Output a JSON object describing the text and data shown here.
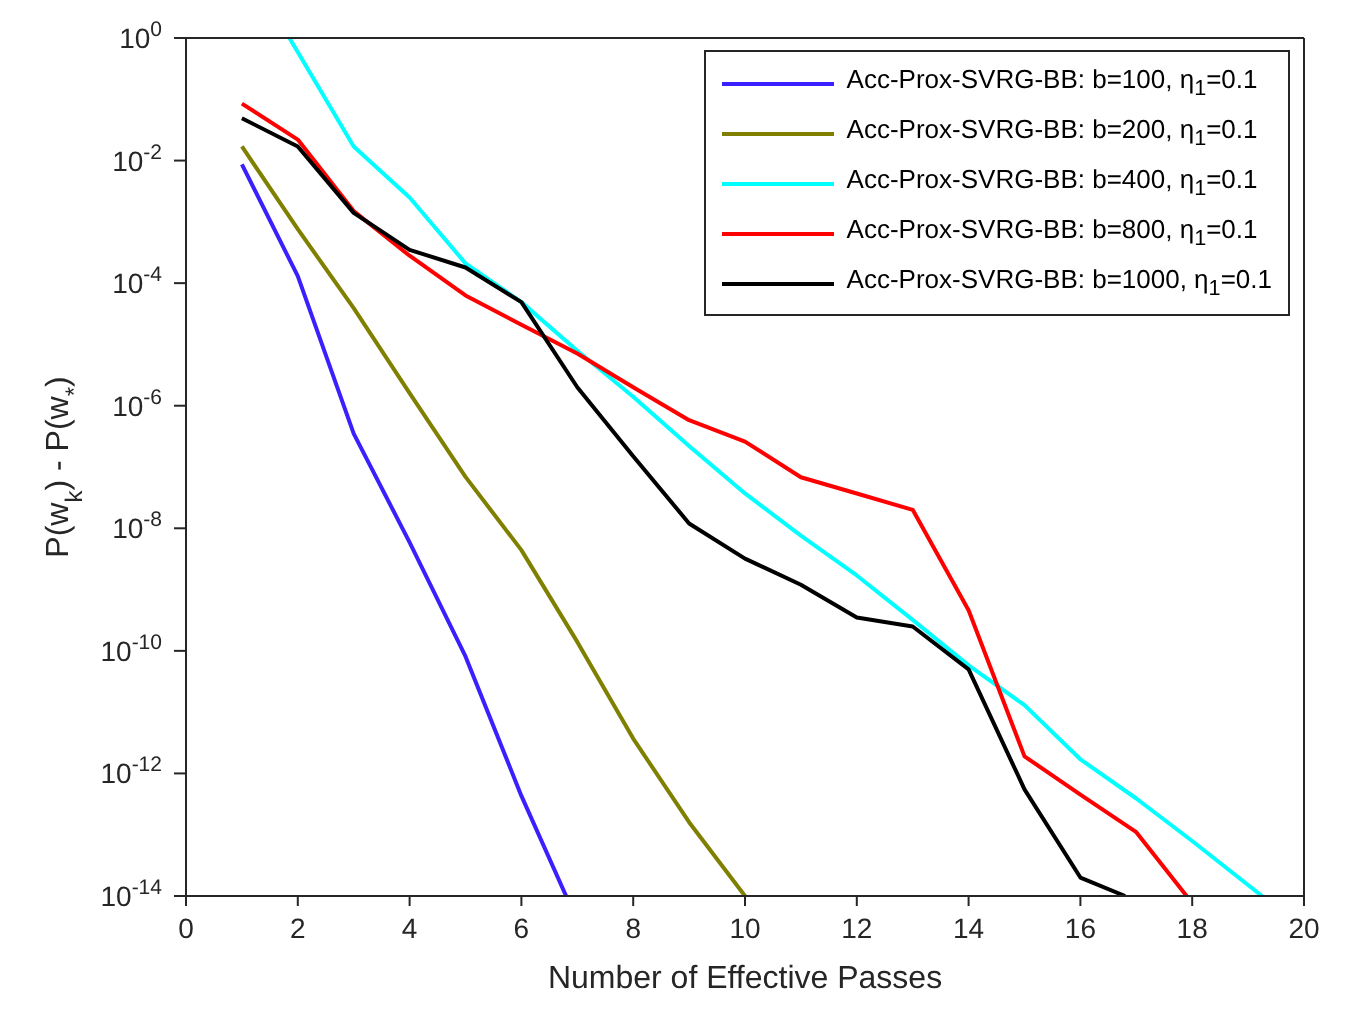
{
  "chart_data": {
    "type": "line",
    "xlabel": "Number of Effective Passes",
    "ylabel": "P(w$_{k}$) - P(w$_{*}$)",
    "log": "y",
    "legend": "top right",
    "marker": "none",
    "line_style": "solid",
    "xlim": [
      0,
      20
    ],
    "xticks": [
      0,
      2,
      4,
      6,
      8,
      10,
      12,
      14,
      16,
      18,
      20
    ],
    "ylim": [
      1e-14,
      1
    ],
    "yticks": [
      {
        "value": 1e-14,
        "label": "10$^{-14}$"
      },
      {
        "value": 1e-12,
        "label": "10$^{-12}$"
      },
      {
        "value": 1e-10,
        "label": "10$^{-10}$"
      },
      {
        "value": 1e-08,
        "label": "10$^{-8}$"
      },
      {
        "value": 1e-06,
        "label": "10$^{-6}$"
      },
      {
        "value": 0.0001,
        "label": "10$^{-4}$"
      },
      {
        "value": 0.01,
        "label": "10$^{-2}$"
      },
      {
        "value": 1,
        "label": "10$^{0}$"
      }
    ],
    "series": [
      {
        "name": "Acc-Prox-SVRG-BB: b=100, η$_{1}$=0.1",
        "color": "#3a1fff",
        "x": [
          1,
          2,
          3,
          4,
          5,
          6,
          6.8
        ],
        "values": [
          0.0087,
          0.00013,
          3.5e-07,
          5.9e-09,
          8.1e-11,
          4.3e-13,
          1e-14
        ]
      },
      {
        "name": "Acc-Prox-SVRG-BB: b=200, η$_{1}$=0.1",
        "color": "#7f7f00",
        "x": [
          1,
          2,
          3,
          4,
          5,
          6,
          7,
          8,
          9,
          10
        ],
        "values": [
          0.017,
          0.00076,
          3.9e-05,
          1.6e-06,
          6.9e-08,
          4.4e-09,
          1.4e-10,
          3.7e-12,
          1.6e-13,
          1e-14
        ]
      },
      {
        "name": "Acc-Prox-SVRG-BB: b=400, η$_{1}$=0.1",
        "color": "#00ffff",
        "x": [
          1.85,
          3,
          4,
          5,
          6,
          7,
          8,
          9,
          10,
          11,
          12,
          13,
          14,
          15,
          16,
          17,
          18,
          19.25
        ],
        "values": [
          1,
          0.017,
          0.0025,
          0.00021,
          4.9e-05,
          7.9e-06,
          1.4e-06,
          2.2e-07,
          3.7e-08,
          7.6e-09,
          1.7e-09,
          3.2e-10,
          5.8e-11,
          1.3e-11,
          1.7e-12,
          3.9e-13,
          7.9e-14,
          1e-14
        ]
      },
      {
        "name": "Acc-Prox-SVRG-BB: b=800, η$_{1}$=0.1",
        "color": "#ff0000",
        "x": [
          1,
          2,
          3,
          4,
          5,
          6,
          7,
          8,
          9,
          10,
          11,
          12,
          13,
          14,
          15,
          16,
          17,
          17.9
        ],
        "values": [
          0.085,
          0.022,
          0.0015,
          0.00028,
          6.3e-05,
          2.1e-05,
          7.1e-06,
          2e-06,
          5.8e-07,
          2.6e-07,
          6.8e-08,
          3.7e-08,
          2e-08,
          4.6e-10,
          1.9e-12,
          4.5e-13,
          1.1e-13,
          1e-14
        ]
      },
      {
        "name": "Acc-Prox-SVRG-BB: b=1000, η$_{1}$=0.1",
        "color": "#000000",
        "x": [
          1,
          2,
          3,
          4,
          5,
          6,
          7,
          8,
          9,
          10,
          11,
          12,
          13,
          14,
          15,
          16,
          16.8
        ],
        "values": [
          0.049,
          0.017,
          0.0014,
          0.00035,
          0.00018,
          4.9e-05,
          2e-06,
          1.5e-07,
          1.2e-08,
          3.2e-09,
          1.2e-09,
          3.5e-10,
          2.5e-10,
          5e-11,
          5.5e-13,
          2e-14,
          1e-14
        ]
      }
    ]
  }
}
